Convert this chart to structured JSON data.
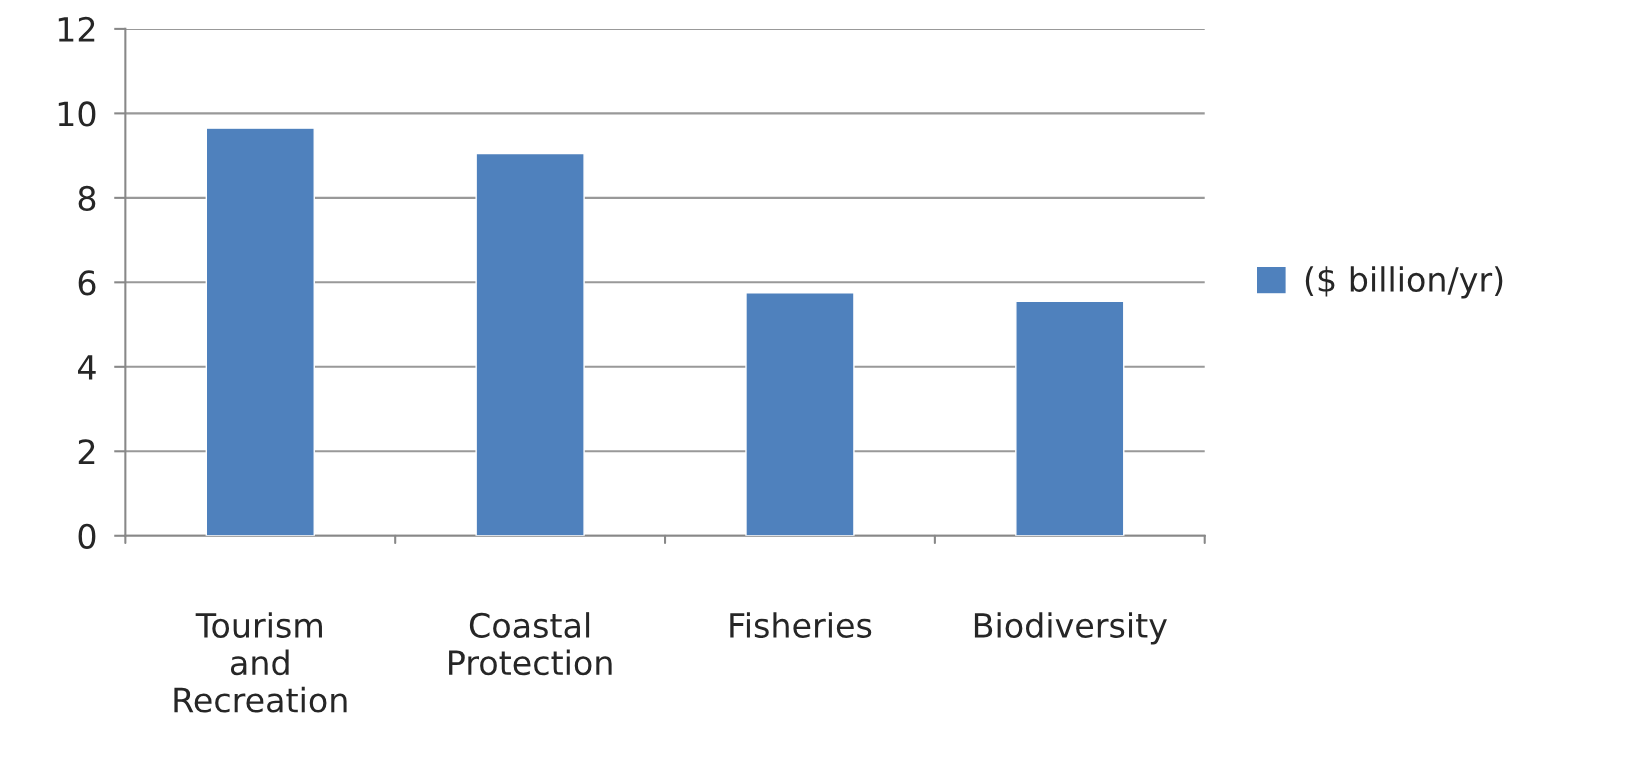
{
  "chart_data": {
    "type": "bar",
    "categories": [
      "Tourism and Recreation",
      "Coastal Protection",
      "Fisheries",
      "Biodiversity"
    ],
    "series": [
      {
        "name": "($ billion/yr)",
        "color": "#4f81bd",
        "values": [
          9.65,
          9.05,
          5.75,
          5.55
        ]
      }
    ],
    "ylim": [
      0,
      12
    ],
    "yticks": [
      0,
      2,
      4,
      6,
      8,
      10,
      12
    ],
    "grid": "y",
    "legend": "right"
  }
}
